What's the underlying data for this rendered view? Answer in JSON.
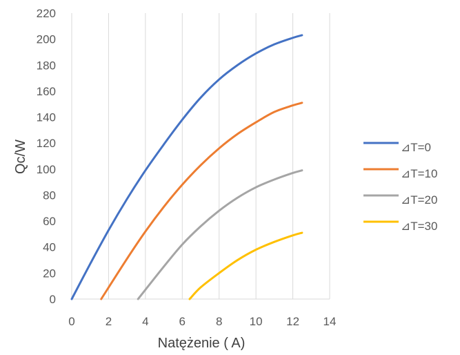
{
  "chart_data": {
    "type": "line",
    "title": "",
    "xlabel": "Natężenie ( A)",
    "ylabel": "Qc/W",
    "xlim": [
      0,
      14
    ],
    "ylim": [
      0,
      220
    ],
    "xticks": [
      "0",
      "2",
      "4",
      "6",
      "8",
      "10",
      "12",
      "14"
    ],
    "yticks": [
      "0",
      "20",
      "40",
      "60",
      "80",
      "100",
      "120",
      "140",
      "160",
      "180",
      "200",
      "220"
    ],
    "grid": "vertical",
    "legend_position": "right",
    "series": [
      {
        "name": "⊿T=0",
        "color": "#4472C4",
        "x": [
          0,
          1,
          2,
          3,
          4,
          5,
          6,
          7,
          8,
          9,
          10,
          11,
          12,
          12.5
        ],
        "y": [
          0,
          27,
          53,
          77,
          99,
          119,
          138,
          155,
          169,
          180,
          189,
          196,
          201,
          203
        ]
      },
      {
        "name": "⊿T=10",
        "color": "#ED7D31",
        "x": [
          1.6,
          3,
          4,
          5,
          6,
          7,
          8,
          9,
          10,
          11,
          12,
          12.5
        ],
        "y": [
          0,
          31,
          52,
          71,
          88,
          103,
          116,
          127,
          136,
          144,
          149,
          151
        ]
      },
      {
        "name": "⊿T=20",
        "color": "#A5A5A5",
        "x": [
          3.6,
          5,
          6,
          7,
          8,
          9,
          10,
          11,
          12,
          12.5
        ],
        "y": [
          0,
          25,
          42,
          56,
          68,
          78,
          86,
          92,
          97,
          99
        ]
      },
      {
        "name": "⊿T=30",
        "color": "#FFC000",
        "x": [
          6.4,
          7,
          8,
          9,
          10,
          11,
          12,
          12.5
        ],
        "y": [
          0,
          9,
          20,
          30,
          38,
          44,
          49,
          51
        ]
      }
    ]
  }
}
